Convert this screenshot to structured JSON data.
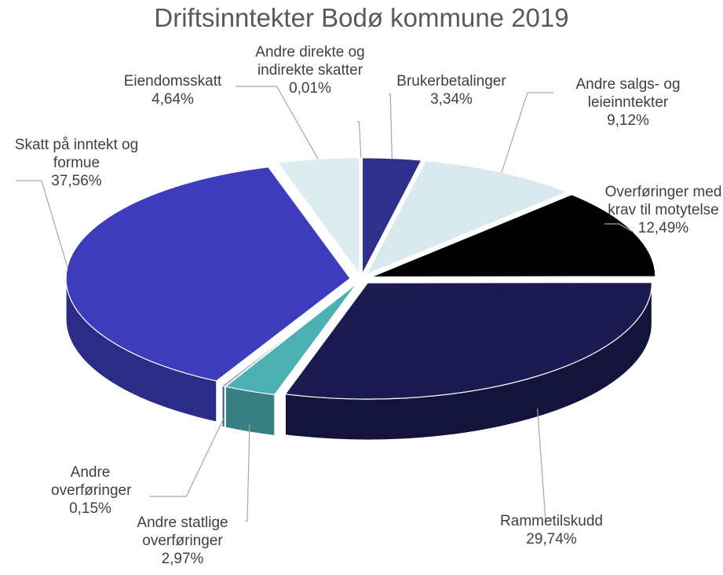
{
  "chart_data": {
    "type": "pie3d",
    "title": "Driftsinntekter Bodø kommune 2019",
    "categories": [
      "Brukerbetalinger",
      "Andre salgs- og leieinntekter",
      "Overføringer med krav til motytelse",
      "Rammetilskudd",
      "Andre statlige overføringer",
      "Andre overføringer",
      "Skatt på inntekt og formue",
      "Eiendomsskatt",
      "Andre direkte og indirekte skatter"
    ],
    "values": [
      3.34,
      9.12,
      12.49,
      29.74,
      2.97,
      0.15,
      37.56,
      4.64,
      0.01
    ],
    "value_labels": [
      "3,34%",
      "9,12%",
      "12,49%",
      "29,74%",
      "2,97%",
      "0,15%",
      "37,56%",
      "4,64%",
      "0,01%"
    ],
    "colors": [
      "#2f2f8c",
      "#d8eaee",
      "#000000",
      "#1b1b52",
      "#4db0b3",
      "#5a78a8",
      "#3c3cbd",
      "#dcecef",
      "#5c5c5c"
    ]
  }
}
